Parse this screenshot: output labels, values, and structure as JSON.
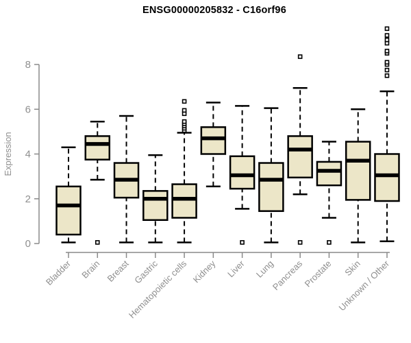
{
  "title": "ENSG00000205832 - C16orf96",
  "chart_data": {
    "type": "boxplot",
    "title": "ENSG00000205832 - C16orf96",
    "xlabel": "",
    "ylabel": "Expression",
    "yticks": [
      0,
      2,
      4,
      6,
      8
    ],
    "ylim": [
      0,
      9.9
    ],
    "grid": false,
    "legend": "none",
    "colors": {
      "box_fill": "#ECE6C8",
      "box_stroke": "#000000",
      "median": "#000000",
      "axis": "#8A8A8A",
      "tick_text": "#8F8F8F",
      "title_text": "#000000"
    },
    "categories": [
      "Bladder",
      "Brain",
      "Breast",
      "Gastric",
      "Hematopoietic cells",
      "Kidney",
      "Liver",
      "Lung",
      "Pancreas",
      "Prostate",
      "Skin",
      "Unknown / Other"
    ],
    "boxes": [
      {
        "label": "Bladder",
        "whisker_low": 0.05,
        "q1": 0.4,
        "median": 1.7,
        "q3": 2.55,
        "whisker_high": 4.3,
        "outliers": []
      },
      {
        "label": "Brain",
        "whisker_low": 2.85,
        "q1": 3.75,
        "median": 4.45,
        "q3": 4.8,
        "whisker_high": 5.45,
        "outliers": [
          0.05
        ]
      },
      {
        "label": "Breast",
        "whisker_low": 0.05,
        "q1": 2.05,
        "median": 2.85,
        "q3": 3.6,
        "whisker_high": 5.7,
        "outliers": []
      },
      {
        "label": "Gastric",
        "whisker_low": 0.05,
        "q1": 1.05,
        "median": 2.0,
        "q3": 2.35,
        "whisker_high": 3.95,
        "outliers": []
      },
      {
        "label": "Hematopoietic cells",
        "whisker_low": 0.05,
        "q1": 1.15,
        "median": 2.0,
        "q3": 2.65,
        "whisker_high": 4.95,
        "outliers": [
          5.05,
          5.15,
          5.25,
          5.35,
          5.45,
          5.8,
          5.95,
          6.35
        ]
      },
      {
        "label": "Kidney",
        "whisker_low": 2.55,
        "q1": 4.0,
        "median": 4.7,
        "q3": 5.2,
        "whisker_high": 6.3,
        "outliers": []
      },
      {
        "label": "Liver",
        "whisker_low": 1.55,
        "q1": 2.45,
        "median": 3.05,
        "q3": 3.9,
        "whisker_high": 6.15,
        "outliers": [
          0.05
        ]
      },
      {
        "label": "Lung",
        "whisker_low": 0.05,
        "q1": 1.45,
        "median": 2.85,
        "q3": 3.6,
        "whisker_high": 6.05,
        "outliers": []
      },
      {
        "label": "Pancreas",
        "whisker_low": 2.2,
        "q1": 2.95,
        "median": 4.2,
        "q3": 4.8,
        "whisker_high": 6.95,
        "outliers": [
          8.35,
          0.05
        ]
      },
      {
        "label": "Prostate",
        "whisker_low": 1.15,
        "q1": 2.6,
        "median": 3.25,
        "q3": 3.65,
        "whisker_high": 4.55,
        "outliers": [
          0.05
        ]
      },
      {
        "label": "Skin",
        "whisker_low": 0.05,
        "q1": 1.95,
        "median": 3.7,
        "q3": 4.55,
        "whisker_high": 6.0,
        "outliers": []
      },
      {
        "label": "Unknown / Other",
        "whisker_low": 0.1,
        "q1": 1.9,
        "median": 3.05,
        "q3": 4.0,
        "whisker_high": 6.8,
        "outliers": [
          7.5,
          7.75,
          8.0,
          8.1,
          8.5,
          8.6,
          8.95,
          9.1,
          9.3,
          9.6
        ]
      }
    ]
  }
}
